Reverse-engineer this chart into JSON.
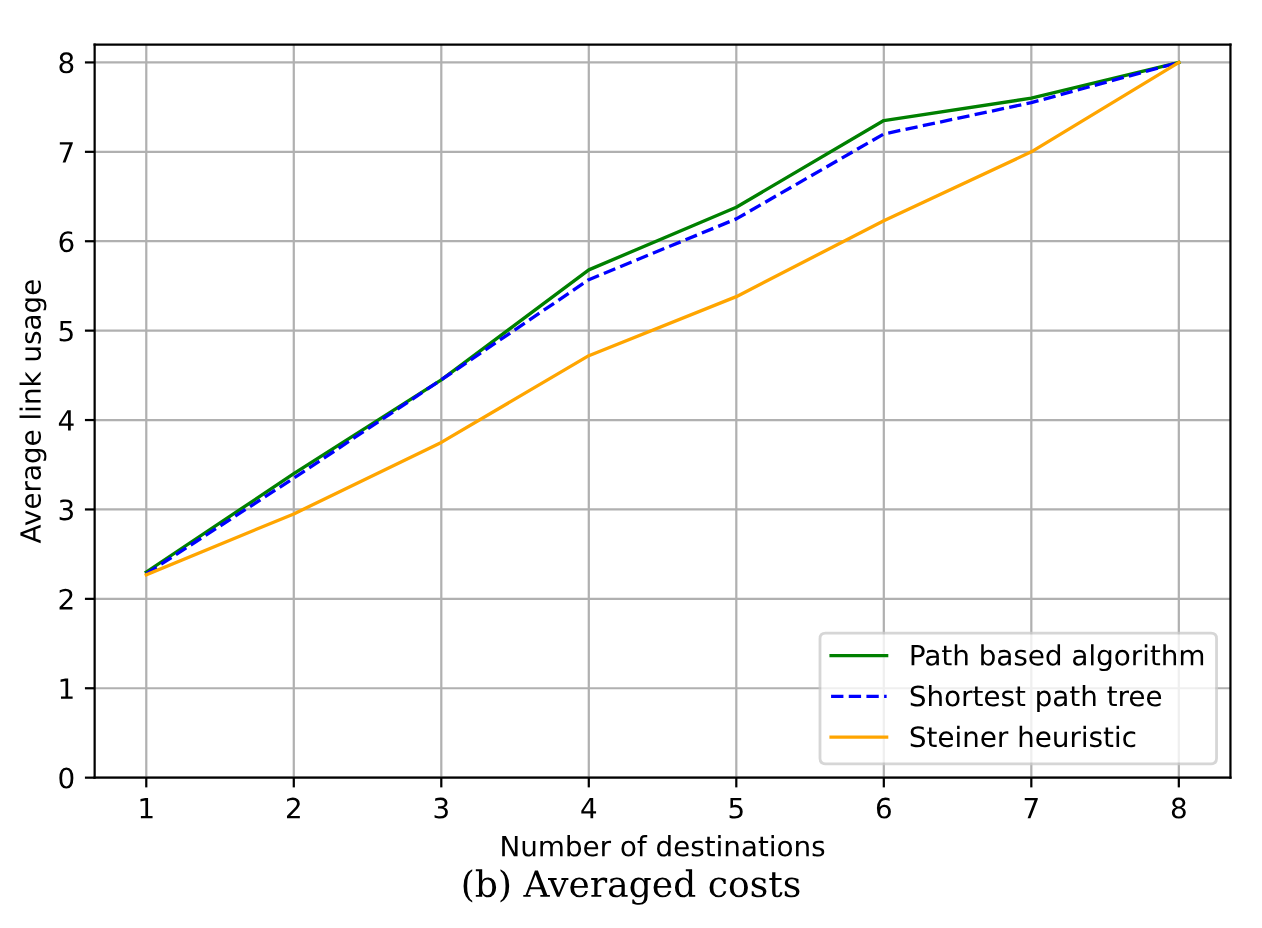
{
  "chart_data": {
    "type": "line",
    "xlabel": "Number of destinations",
    "ylabel": "Average link usage",
    "x": [
      1,
      2,
      3,
      4,
      5,
      6,
      7,
      8
    ],
    "series": [
      {
        "name": "Path based algorithm",
        "color": "#008000",
        "line_style": "solid",
        "values": [
          2.3,
          3.4,
          4.45,
          5.68,
          6.38,
          7.35,
          7.6,
          8.0
        ]
      },
      {
        "name": "Shortest path tree",
        "color": "#0000ff",
        "line_style": "dashed",
        "values": [
          2.28,
          3.35,
          4.45,
          5.57,
          6.25,
          7.2,
          7.55,
          8.0
        ]
      },
      {
        "name": "Steiner heuristic",
        "color": "#ffa500",
        "line_style": "solid",
        "values": [
          2.27,
          2.95,
          3.75,
          4.72,
          5.38,
          6.23,
          7.0,
          8.0
        ]
      }
    ],
    "xlim": [
      0.65,
      8.35
    ],
    "xticks": [
      1,
      2,
      3,
      4,
      5,
      6,
      7,
      8
    ],
    "ylim": [
      0,
      8.2
    ],
    "yticks": [
      0,
      1,
      2,
      3,
      4,
      5,
      6,
      7,
      8
    ],
    "grid": true,
    "legend": "bottom right",
    "annotations": [
      "(b) Averaged costs"
    ]
  }
}
